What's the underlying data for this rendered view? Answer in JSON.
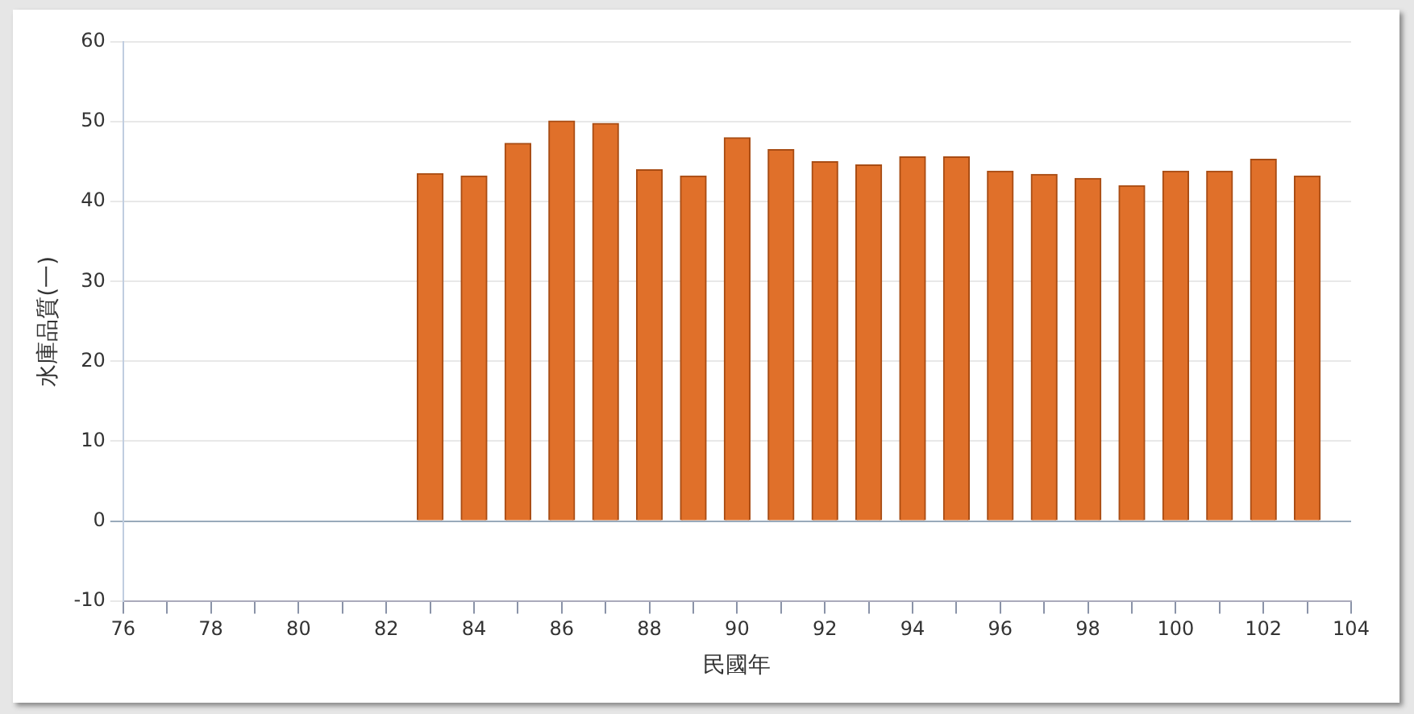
{
  "chart_data": {
    "type": "bar",
    "xlabel": "民國年",
    "ylabel": "水庫品質(一)",
    "x": [
      83,
      84,
      85,
      86,
      87,
      88,
      89,
      90,
      91,
      92,
      93,
      94,
      95,
      96,
      97,
      98,
      99,
      100,
      101,
      102,
      103
    ],
    "values": [
      43.5,
      43.2,
      47.3,
      50.1,
      49.8,
      44.0,
      43.2,
      48.0,
      46.5,
      45.0,
      44.6,
      45.6,
      45.6,
      43.8,
      43.4,
      42.9,
      42.0,
      43.8,
      43.8,
      45.3,
      43.2
    ],
    "color": "#e0702a",
    "xlim": [
      76,
      104
    ],
    "xticks": [
      76,
      {
        "value": 77,
        "label": null
      },
      78,
      {
        "value": 79,
        "label": null
      },
      80,
      {
        "value": 81,
        "label": null
      },
      82,
      {
        "value": 83,
        "label": null
      },
      84,
      {
        "value": 85,
        "label": null
      },
      86,
      {
        "value": 87,
        "label": null
      },
      88,
      {
        "value": 89,
        "label": null
      },
      90,
      {
        "value": 91,
        "label": null
      },
      92,
      {
        "value": 93,
        "label": null
      },
      94,
      {
        "value": 95,
        "label": null
      },
      96,
      {
        "value": 97,
        "label": null
      },
      98,
      {
        "value": 99,
        "label": null
      },
      100,
      {
        "value": 101,
        "label": null
      },
      102,
      {
        "value": 103,
        "label": null
      },
      104
    ],
    "ylim": [
      -10,
      60
    ],
    "yticks": [
      -10,
      0,
      10,
      20,
      30,
      40,
      50,
      60
    ],
    "grid": "y"
  }
}
